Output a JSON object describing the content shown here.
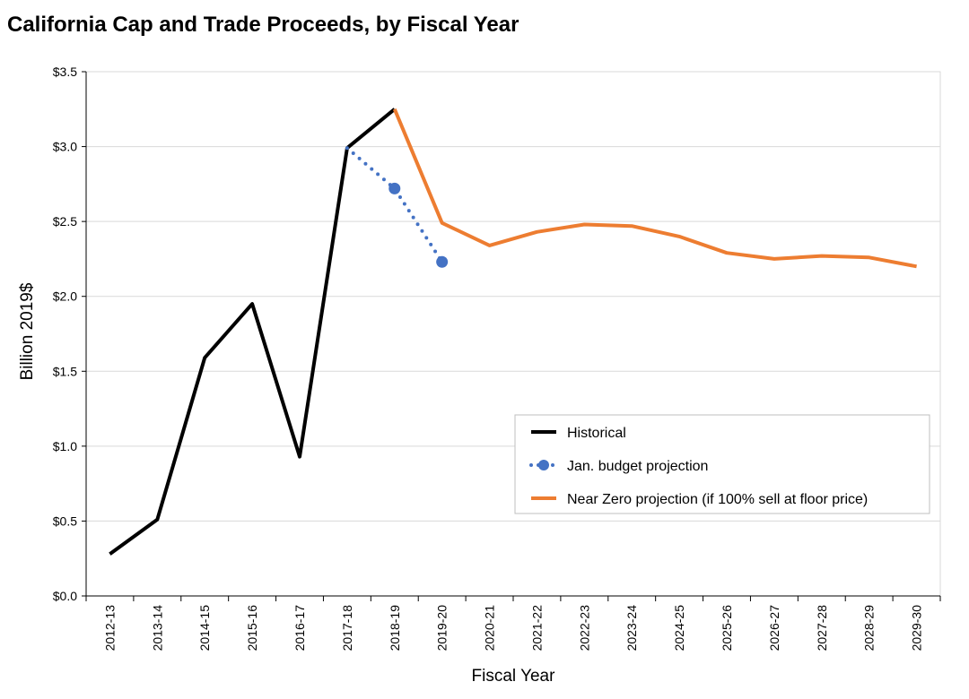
{
  "chart_data": {
    "type": "line",
    "title": "California Cap and Trade Proceeds, by Fiscal Year",
    "xlabel": "Fiscal Year",
    "ylabel": "Billion 2019$",
    "ylim": [
      0,
      3.5
    ],
    "yticks": [
      0,
      0.5,
      1.0,
      1.5,
      2.0,
      2.5,
      3.0,
      3.5
    ],
    "ytick_labels": [
      "$0.0",
      "$0.5",
      "$1.0",
      "$1.5",
      "$2.0",
      "$2.5",
      "$3.0",
      "$3.5"
    ],
    "categories": [
      "2012-13",
      "2013-14",
      "2014-15",
      "2015-16",
      "2016-17",
      "2017-18",
      "2018-19",
      "2019-20",
      "2020-21",
      "2021-22",
      "2022-23",
      "2023-24",
      "2024-25",
      "2025-26",
      "2026-27",
      "2027-28",
      "2028-29",
      "2029-30"
    ],
    "grid": "horizontal",
    "legend_position": "right-center",
    "series": [
      {
        "name": "Historical",
        "color": "#000000",
        "style": "solid",
        "values": [
          0.28,
          0.51,
          1.59,
          1.95,
          0.93,
          2.99,
          3.25,
          null,
          null,
          null,
          null,
          null,
          null,
          null,
          null,
          null,
          null,
          null
        ]
      },
      {
        "name": "Jan. budget projection",
        "color": "#4472c4",
        "style": "dotted-markers",
        "values": [
          null,
          null,
          null,
          null,
          null,
          2.99,
          2.72,
          2.23,
          null,
          null,
          null,
          null,
          null,
          null,
          null,
          null,
          null,
          null
        ]
      },
      {
        "name": "Near Zero projection (if 100% sell at floor price)",
        "color": "#ed7d31",
        "style": "solid",
        "values": [
          null,
          null,
          null,
          null,
          null,
          null,
          3.25,
          2.49,
          2.34,
          2.43,
          2.48,
          2.47,
          2.4,
          2.29,
          2.25,
          2.27,
          2.26,
          2.2
        ]
      }
    ]
  }
}
